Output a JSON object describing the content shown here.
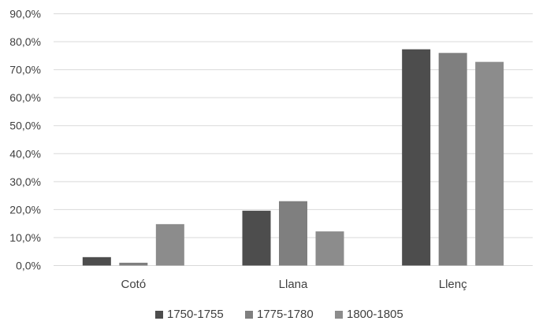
{
  "chart_data": {
    "type": "bar",
    "categories": [
      "Cotó",
      "Llana",
      "Llenç"
    ],
    "series": [
      {
        "name": "1750-1755",
        "values": [
          3.0,
          19.6,
          77.3
        ],
        "color": "#4d4d4d"
      },
      {
        "name": "1775-1780",
        "values": [
          1.0,
          23.0,
          76.0
        ],
        "color": "#7f7f7f"
      },
      {
        "name": "1800-1805",
        "values": [
          14.8,
          12.2,
          72.8
        ],
        "color": "#8c8c8c"
      }
    ],
    "y_ticks": [
      "0,0%",
      "10,0%",
      "20,0%",
      "30,0%",
      "40,0%",
      "50,0%",
      "60,0%",
      "70,0%",
      "80,0%",
      "90,0%"
    ],
    "ylim": [
      0,
      90
    ],
    "grid": true,
    "legend_position": "bottom",
    "gridline_color": "#d9d9d9"
  }
}
